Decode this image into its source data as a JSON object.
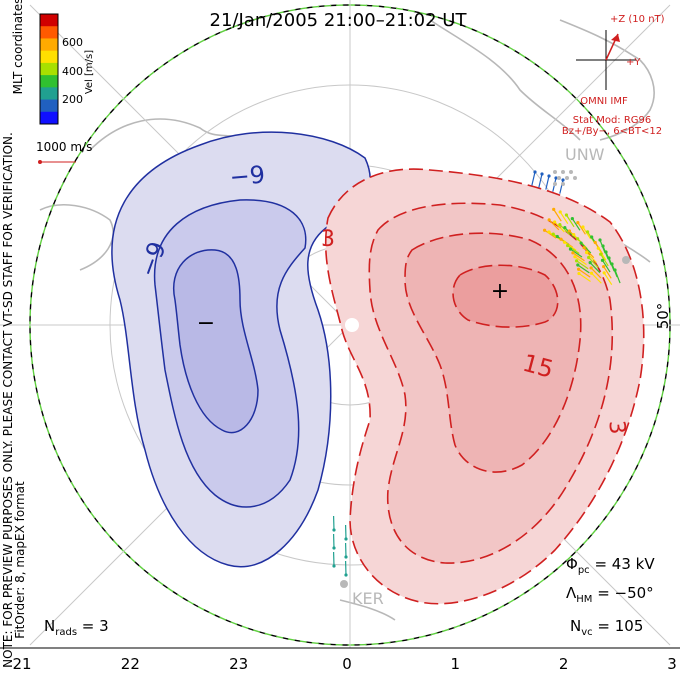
{
  "title": "21/Jan/2005 21:00–21:02 UT",
  "colorbar": {
    "label": "Vel [m/s]",
    "ticks": [
      "600",
      "400",
      "200"
    ],
    "colors": [
      "#d00000",
      "#ff5a00",
      "#ffaa00",
      "#ffe000",
      "#a8e000",
      "#30c030",
      "#20a090",
      "#2060c0",
      "#1010ff"
    ]
  },
  "coords_label": "MLT coordinates",
  "vector_scale_label": "1000 m/s",
  "side_note_line1": "NOTE: FOR PREVIEW PURPOSES ONLY. PLEASE CONTACT VT-SD STAFF FOR VERIFICATION.",
  "side_note_line2": "FitOrder: 8, mapEX format",
  "imf": {
    "z_label": "+Z (10 nT)",
    "y_label": "+Y",
    "source": "OMNI IMF",
    "stat_mod": "Stat Mod: RG96",
    "condition": "Bz+/By−, 6<BT<12"
  },
  "stations": [
    "UNW",
    "KER"
  ],
  "lat_label": "50°",
  "contour_labels": [
    "−9",
    "−9",
    "3",
    "15",
    "3"
  ],
  "potential_markers": {
    "min": "−",
    "max": "+"
  },
  "stats": {
    "phi_sym": "Φ",
    "phi_sub": "pc",
    "phi_value": " = 43 kV",
    "lambda_sym": "Λ",
    "lambda_sub": "HM",
    "lambda_value": " = −50°",
    "nvc_sym": "N",
    "nvc_sub": "vc",
    "nvc_value": " = 105",
    "nrads_sym": "N",
    "nrads_sub": "rads",
    "nrads_value": " = 3"
  },
  "mlt_ticks": [
    "21",
    "22",
    "23",
    "0",
    "1",
    "2",
    "3"
  ],
  "colors": {
    "negative_cell": "#2030a0",
    "positive_cell": "#d02020",
    "boundary_dash": "#60d040"
  }
}
